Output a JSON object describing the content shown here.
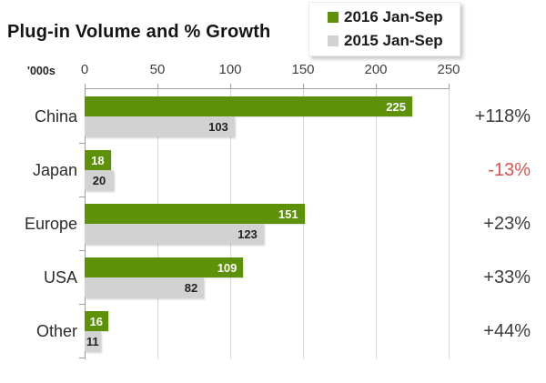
{
  "title": "Plug-in Volume and % Growth",
  "axis_unit_label": "'000s",
  "legend": [
    {
      "label": "2016 Jan-Sep",
      "color": "#5d9108"
    },
    {
      "label": "2015 Jan-Sep",
      "color": "#d2d2d2"
    }
  ],
  "colors": {
    "bar_2016": "#5d9108",
    "bar_2015": "#d2d2d2",
    "value_on_green": "#ffffff",
    "value_on_gray": "#222222",
    "growth_positive": "#3c3c3c",
    "growth_negative": "#d9534f",
    "gridline": "#d8d8d8",
    "axis": "#9f9f9f"
  },
  "chart_data": {
    "type": "bar",
    "orientation": "horizontal",
    "title": "Plug-in Volume and % Growth",
    "unit": "'000s (thousands of vehicles)",
    "categories": [
      "China",
      "Japan",
      "Europe",
      "USA",
      "Other"
    ],
    "series": [
      {
        "name": "2016 Jan-Sep",
        "color": "#5d9108",
        "values": [
          225,
          18,
          151,
          109,
          16
        ]
      },
      {
        "name": "2015 Jan-Sep",
        "color": "#d2d2d2",
        "values": [
          103,
          20,
          123,
          82,
          11
        ]
      }
    ],
    "growth_labels": [
      "+118%",
      "-13%",
      "+23%",
      "+33%",
      "+44%"
    ],
    "xlim": [
      0,
      250
    ],
    "x_ticks": [
      0,
      50,
      100,
      150,
      200,
      250
    ],
    "grid": true,
    "legend_position": "top-right"
  }
}
